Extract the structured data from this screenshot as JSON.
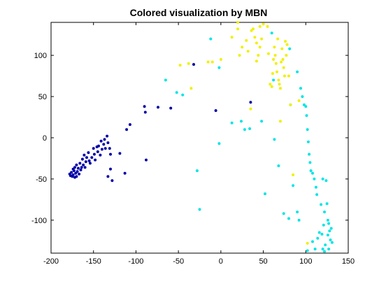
{
  "chart_data": {
    "type": "scatter",
    "title": "Colored visualization by MBN",
    "xlabel": "",
    "ylabel": "",
    "xlim": [
      -200,
      150
    ],
    "ylim": [
      -140,
      140
    ],
    "xticks": [
      -200,
      -150,
      -100,
      -50,
      0,
      50,
      100,
      150
    ],
    "yticks": [
      -100,
      -50,
      0,
      50,
      100
    ],
    "grid": false,
    "legend": "none",
    "series": [
      {
        "color": "#0000a8",
        "marker": "dot",
        "points": [
          [
            -178,
            -44
          ],
          [
            -177,
            -46
          ],
          [
            -176,
            -42
          ],
          [
            -175,
            -47
          ],
          [
            -174,
            -38
          ],
          [
            -174,
            -45
          ],
          [
            -173,
            -40
          ],
          [
            -172,
            -48
          ],
          [
            -172,
            -36
          ],
          [
            -171,
            -43
          ],
          [
            -170,
            -33
          ],
          [
            -170,
            -47
          ],
          [
            -169,
            -41
          ],
          [
            -168,
            -37
          ],
          [
            -167,
            -44
          ],
          [
            -166,
            -31
          ],
          [
            -165,
            -39
          ],
          [
            -164,
            -36
          ],
          [
            -163,
            -26
          ],
          [
            -162,
            -33
          ],
          [
            -161,
            -21
          ],
          [
            -160,
            -36
          ],
          [
            -159,
            -29
          ],
          [
            -158,
            -24
          ],
          [
            -156,
            -18
          ],
          [
            -155,
            -28
          ],
          [
            -154,
            -31
          ],
          [
            -152,
            -24
          ],
          [
            -150,
            -13
          ],
          [
            -149,
            -20
          ],
          [
            -148,
            -27
          ],
          [
            -146,
            -11
          ],
          [
            -145,
            -17
          ],
          [
            -144,
            -10
          ],
          [
            -142,
            -21
          ],
          [
            -141,
            -4
          ],
          [
            -140,
            -14
          ],
          [
            -138,
            -8
          ],
          [
            -137,
            -2
          ],
          [
            -136,
            -13
          ],
          [
            -134,
            2
          ],
          [
            -133,
            -6
          ],
          [
            -131,
            -13
          ],
          [
            -130,
            -20
          ],
          [
            -133,
            -47
          ],
          [
            -128,
            -52
          ],
          [
            -130,
            -38
          ],
          [
            -119,
            -19
          ],
          [
            -113,
            -43
          ],
          [
            -111,
            10
          ],
          [
            -107,
            16
          ],
          [
            -90,
            38
          ],
          [
            -89,
            31
          ],
          [
            -88,
            -27
          ],
          [
            -74,
            37
          ],
          [
            -59,
            36
          ],
          [
            -32,
            89
          ],
          [
            -6,
            33
          ],
          [
            35,
            43
          ]
        ]
      },
      {
        "color": "#00e5e5",
        "marker": "dot",
        "points": [
          [
            -65,
            70
          ],
          [
            -52,
            55
          ],
          [
            -45,
            52
          ],
          [
            -28,
            -40
          ],
          [
            -25,
            -87
          ],
          [
            -12,
            120
          ],
          [
            -2,
            85
          ],
          [
            -2,
            -7
          ],
          [
            13,
            18
          ],
          [
            24,
            20
          ],
          [
            28,
            10
          ],
          [
            34,
            11
          ],
          [
            48,
            20
          ],
          [
            52,
            -68
          ],
          [
            60,
            127
          ],
          [
            62,
            70
          ],
          [
            63,
            -2
          ],
          [
            68,
            -34
          ],
          [
            74,
            -92
          ],
          [
            80,
            -98
          ],
          [
            81,
            108
          ],
          [
            82,
            40
          ],
          [
            85,
            -58
          ],
          [
            90,
            -90
          ],
          [
            90,
            80
          ],
          [
            92,
            -100
          ],
          [
            94,
            60
          ],
          [
            96,
            50
          ],
          [
            98,
            40
          ],
          [
            100,
            38
          ],
          [
            101,
            27
          ],
          [
            102,
            10
          ],
          [
            103,
            -5
          ],
          [
            104,
            -20
          ],
          [
            105,
            -30
          ],
          [
            106,
            -40
          ],
          [
            108,
            -43
          ],
          [
            110,
            -50
          ],
          [
            112,
            -60
          ],
          [
            113,
            -69
          ],
          [
            116,
            -115
          ],
          [
            118,
            -81
          ],
          [
            120,
            -50
          ],
          [
            121,
            -106
          ],
          [
            122,
            -90
          ],
          [
            123,
            -130
          ],
          [
            124,
            -52
          ],
          [
            125,
            -80
          ],
          [
            126,
            -100
          ],
          [
            126,
            -118
          ],
          [
            127,
            -135
          ],
          [
            128,
            -113
          ],
          [
            129,
            -124
          ],
          [
            130,
            -110
          ],
          [
            120,
            -135
          ],
          [
            122,
            -138
          ],
          [
            111,
            -135
          ],
          [
            108,
            -126
          ],
          [
            102,
            -137
          ],
          [
            114,
            -122
          ],
          [
            127,
            -104
          ],
          [
            131,
            -127
          ],
          [
            119,
            -117
          ]
        ]
      },
      {
        "color": "#f0f000",
        "marker": "dot",
        "points": [
          [
            -48,
            88
          ],
          [
            -38,
            90
          ],
          [
            -35,
            60
          ],
          [
            -10,
            92
          ],
          [
            -15,
            92
          ],
          [
            0,
            95
          ],
          [
            13,
            122
          ],
          [
            20,
            140
          ],
          [
            22,
            100
          ],
          [
            25,
            110
          ],
          [
            30,
            118
          ],
          [
            32,
            105
          ],
          [
            36,
            130
          ],
          [
            38,
            132
          ],
          [
            40,
            122
          ],
          [
            42,
            115
          ],
          [
            42,
            93
          ],
          [
            44,
            100
          ],
          [
            46,
            135
          ],
          [
            48,
            120
          ],
          [
            50,
            138
          ],
          [
            55,
            135
          ],
          [
            58,
            65
          ],
          [
            60,
            62
          ],
          [
            61,
            78
          ],
          [
            62,
            95
          ],
          [
            63,
            110
          ],
          [
            64,
            100
          ],
          [
            65,
            90
          ],
          [
            66,
            80
          ],
          [
            67,
            120
          ],
          [
            68,
            70
          ],
          [
            69,
            65
          ],
          [
            70,
            60
          ],
          [
            70,
            20
          ],
          [
            71,
            92
          ],
          [
            72,
            108
          ],
          [
            73,
            95
          ],
          [
            74,
            85
          ],
          [
            75,
            75
          ],
          [
            76,
            117
          ],
          [
            77,
            100
          ],
          [
            78,
            113
          ],
          [
            80,
            75
          ],
          [
            82,
            40
          ],
          [
            85,
            -45
          ],
          [
            92,
            45
          ],
          [
            102,
            -128
          ],
          [
            20,
            132
          ],
          [
            35,
            35
          ],
          [
            46,
            110
          ],
          [
            56,
            102
          ]
        ]
      }
    ]
  }
}
